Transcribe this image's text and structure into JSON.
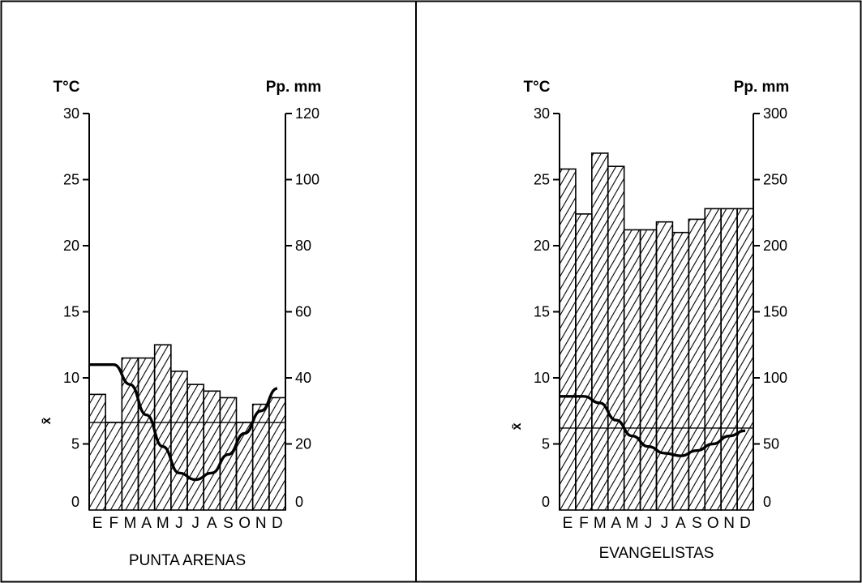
{
  "chart_data": [
    {
      "type": "bar",
      "title": "PUNTA ARENAS",
      "categories": [
        "E",
        "F",
        "M",
        "A",
        "M",
        "J",
        "J",
        "A",
        "S",
        "O",
        "N",
        "D"
      ],
      "ylabel_left": "T°C",
      "ylabel_right": "Pp. mm",
      "ylim_left": [
        0,
        30
      ],
      "ylim_right": [
        0,
        120
      ],
      "yticks_left": [
        "0",
        "5",
        "10",
        "15",
        "20",
        "25",
        "30"
      ],
      "yticks_right": [
        "0",
        "20",
        "40",
        "60",
        "80",
        "100",
        "120"
      ],
      "mean_label": "x̄",
      "mean_precip": 26.5,
      "series": [
        {
          "kind": "bar",
          "axis": "right",
          "values": [
            35,
            26.5,
            46,
            46,
            50,
            42,
            38,
            36,
            34,
            26.5,
            32,
            34
          ]
        },
        {
          "kind": "line",
          "axis": "left",
          "values": [
            11,
            11,
            9.5,
            7.2,
            4.8,
            2.8,
            2.3,
            2.8,
            4.2,
            5.8,
            7.5,
            9.2
          ]
        }
      ]
    },
    {
      "type": "bar",
      "title": "EVANGELISTAS",
      "categories": [
        "E",
        "F",
        "M",
        "A",
        "M",
        "J",
        "J",
        "A",
        "S",
        "O",
        "N",
        "D"
      ],
      "ylabel_left": "T°C",
      "ylabel_right": "Pp. mm",
      "ylim_left": [
        0,
        30
      ],
      "ylim_right": [
        0,
        300
      ],
      "yticks_left": [
        "0",
        "5",
        "10",
        "15",
        "20",
        "25",
        "30"
      ],
      "yticks_right": [
        "0",
        "50",
        "100",
        "150",
        "200",
        "250",
        "300"
      ],
      "mean_label": "x̄",
      "mean_precip": 62,
      "series": [
        {
          "kind": "bar",
          "axis": "right",
          "values": [
            258,
            224,
            270,
            260,
            212,
            212,
            218,
            210,
            220,
            228,
            228,
            228
          ]
        },
        {
          "kind": "line",
          "axis": "left",
          "values": [
            8.6,
            8.6,
            8.1,
            6.8,
            5.6,
            4.8,
            4.3,
            4.1,
            4.5,
            5.0,
            5.6,
            6.0
          ]
        }
      ]
    }
  ]
}
